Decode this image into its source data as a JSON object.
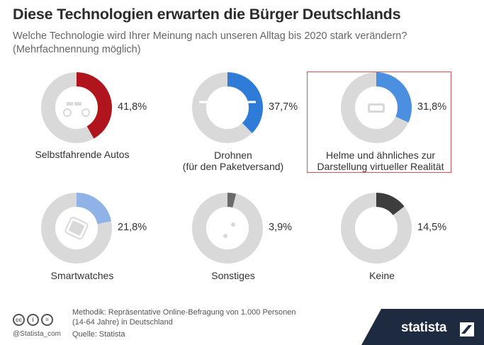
{
  "header": {
    "title": "Diese Technologien erwarten die Bürger Deutschlands",
    "subtitle": "Welche Technologie wird Ihrer Meinung nach unseren Alltag bis 2020 stark verändern? (Mehrfachnennung möglich)"
  },
  "chart_data": {
    "type": "pie",
    "unit": "%",
    "highlighted": "Helme und ähnliches zur Darstellung virtueller Realität",
    "items": [
      {
        "label": "Selbstfahrende Autos",
        "value": 41.8,
        "display": "41,8%",
        "color": "#b0141c",
        "icon": "car-icon"
      },
      {
        "label": "Drohnen\n(für den Paketversand)",
        "value": 37.7,
        "display": "37,7%",
        "color": "#2f7bd8",
        "icon": "drone-icon"
      },
      {
        "label": "Helme und ähnliches zur\nDarstellung virtueller Realität",
        "value": 31.8,
        "display": "31,8%",
        "color": "#4a8fe0",
        "icon": "vr-headset-icon"
      },
      {
        "label": "Smartwatches",
        "value": 21.8,
        "display": "21,8%",
        "color": "#8fb3e6",
        "icon": "smartwatch-icon"
      },
      {
        "label": "Sonstiges",
        "value": 3.9,
        "display": "3,9%",
        "color": "#6a6a6a",
        "icon": "devices-icon"
      },
      {
        "label": "Keine",
        "value": 14.5,
        "display": "14,5%",
        "color": "#3d3d3d",
        "icon": ""
      }
    ],
    "track_color": "#d9d9d9"
  },
  "footer": {
    "handle": "@Statista_com",
    "method": "Methodik: Repräsentative Online-Befragung von 1.000 Personen (14-64 Jahre) in Deutschland",
    "source": "Quelle: Statista",
    "brand": "statista",
    "license_icons": [
      "cc-icon",
      "by-icon",
      "nd-icon"
    ]
  }
}
